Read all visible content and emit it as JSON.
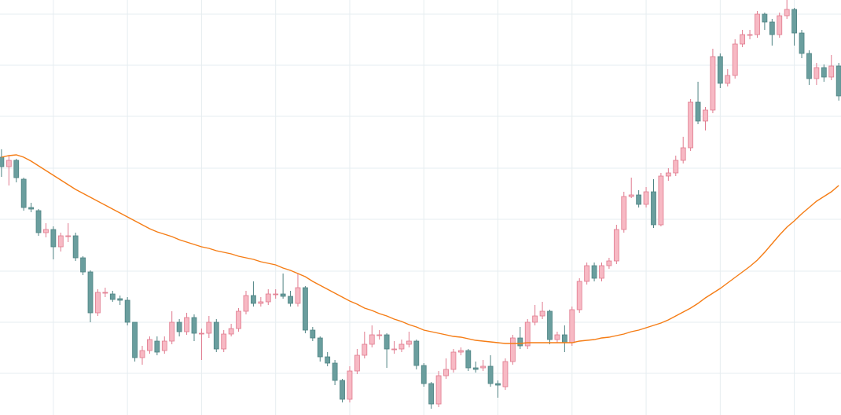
{
  "chart_data": {
    "type": "candlestick",
    "open": [
      328,
      316,
      324,
      300,
      264,
      260,
      232,
      236,
      214,
      228,
      228,
      200,
      182,
      130,
      156,
      154,
      148,
      146,
      118,
      73,
      82,
      94,
      82,
      94,
      118,
      106,
      124,
      104,
      104,
      118,
      84,
      103,
      110,
      132,
      152,
      142,
      144,
      154,
      154,
      151,
      142,
      162,
      108,
      98,
      74,
      66,
      44,
      20,
      56,
      76,
      90,
      102,
      102,
      84,
      84,
      90,
      94,
      63,
      40,
      14,
      50,
      58,
      80,
      82,
      60,
      60,
      62,
      40,
      36,
      68,
      98,
      88,
      118,
      126,
      132,
      96,
      102,
      92,
      134,
      170,
      190,
      174,
      190,
      196,
      236,
      278,
      280,
      268,
      284,
      242,
      304,
      308,
      324,
      340,
      398,
      374,
      388,
      456,
      422,
      432,
      472,
      484,
      484,
      510,
      500,
      484,
      508,
      516,
      486,
      460,
      428,
      442,
      430,
      444
    ],
    "close": [
      316,
      324,
      302,
      264,
      262,
      232,
      236,
      214,
      228,
      228,
      200,
      182,
      130,
      156,
      156,
      147,
      146,
      118,
      73,
      82,
      96,
      80,
      94,
      118,
      106,
      124,
      104,
      104,
      118,
      84,
      103,
      110,
      132,
      152,
      142,
      144,
      154,
      154,
      151,
      142,
      162,
      108,
      98,
      74,
      66,
      44,
      20,
      56,
      76,
      90,
      102,
      102,
      84,
      84,
      90,
      94,
      63,
      40,
      14,
      50,
      58,
      80,
      82,
      60,
      58,
      62,
      40,
      38,
      68,
      98,
      88,
      118,
      126,
      132,
      96,
      102,
      92,
      134,
      170,
      190,
      174,
      190,
      196,
      236,
      278,
      280,
      268,
      284,
      242,
      304,
      308,
      324,
      340,
      398,
      374,
      388,
      456,
      422,
      432,
      472,
      484,
      484,
      510,
      500,
      484,
      508,
      516,
      486,
      460,
      428,
      442,
      430,
      444,
      406
    ],
    "high": [
      338,
      330,
      326,
      302,
      270,
      262,
      244,
      240,
      232,
      244,
      232,
      202,
      184,
      160,
      162,
      158,
      152,
      150,
      118,
      88,
      100,
      100,
      100,
      132,
      122,
      130,
      128,
      110,
      126,
      122,
      108,
      116,
      136,
      158,
      170,
      150,
      160,
      160,
      180,
      158,
      180,
      164,
      112,
      100,
      80,
      70,
      46,
      62,
      84,
      106,
      114,
      108,
      104,
      94,
      96,
      106,
      96,
      66,
      42,
      56,
      72,
      84,
      86,
      84,
      68,
      70,
      76,
      44,
      72,
      102,
      112,
      122,
      140,
      144,
      134,
      106,
      114,
      138,
      174,
      194,
      194,
      194,
      200,
      242,
      284,
      302,
      286,
      290,
      300,
      308,
      314,
      330,
      354,
      402,
      424,
      392,
      466,
      460,
      440,
      478,
      490,
      490,
      514,
      512,
      504,
      512,
      528,
      518,
      490,
      464,
      448,
      446,
      458,
      448
    ],
    "low": [
      303,
      292,
      296,
      260,
      258,
      228,
      226,
      198,
      208,
      220,
      196,
      178,
      118,
      126,
      150,
      144,
      140,
      114,
      68,
      64,
      78,
      76,
      78,
      90,
      100,
      102,
      94,
      70,
      98,
      80,
      80,
      100,
      106,
      128,
      138,
      138,
      140,
      148,
      148,
      138,
      138,
      104,
      94,
      68,
      62,
      38,
      16,
      16,
      52,
      72,
      86,
      96,
      60,
      78,
      80,
      86,
      58,
      36,
      8,
      10,
      46,
      54,
      76,
      56,
      54,
      56,
      36,
      22,
      32,
      64,
      84,
      84,
      114,
      122,
      90,
      92,
      80,
      88,
      130,
      166,
      170,
      170,
      186,
      192,
      232,
      276,
      264,
      264,
      238,
      240,
      298,
      304,
      320,
      336,
      370,
      362,
      384,
      416,
      418,
      428,
      468,
      478,
      480,
      490,
      470,
      480,
      504,
      470,
      454,
      420,
      420,
      424,
      426,
      400
    ],
    "up_color": "#f7b9c4",
    "up_edge": "#e07a8e",
    "down_color": "#6a9e9e",
    "down_edge": "#4e8383",
    "moving_average": {
      "color": "#f57c14",
      "values": [
        328,
        330,
        331,
        328,
        323,
        317,
        311,
        305,
        299,
        293,
        287,
        282,
        277,
        272,
        267,
        262,
        257,
        252,
        247,
        242,
        237,
        233,
        230,
        227,
        223,
        220,
        217,
        214,
        212,
        209,
        207,
        205,
        202,
        200,
        198,
        195,
        193,
        191,
        187,
        184,
        180,
        176,
        170,
        165,
        160,
        155,
        150,
        145,
        141,
        136,
        133,
        129,
        126,
        122,
        119,
        115,
        112,
        108,
        106,
        104,
        102,
        100,
        99,
        97,
        95,
        94,
        93,
        92,
        91,
        91,
        91,
        92,
        92,
        92,
        92,
        92,
        92,
        92,
        94,
        95,
        96,
        98,
        99,
        101,
        103,
        106,
        108,
        111,
        114,
        117,
        121,
        126,
        131,
        136,
        142,
        149,
        155,
        161,
        168,
        175,
        182,
        189,
        197,
        207,
        218,
        229,
        239,
        247,
        256,
        264,
        272,
        278,
        284,
        292
      ]
    },
    "xlim": [
      -0.2,
      113.3
    ],
    "xticks": [
      7,
      17,
      27,
      37,
      47,
      57,
      67,
      77,
      87,
      97,
      107
    ],
    "ylim": [
      0,
      528
    ],
    "yticks": [
      53,
      118,
      183,
      249,
      314,
      380,
      445,
      510
    ],
    "grid": true,
    "grid_color": "#e6edf0"
  }
}
